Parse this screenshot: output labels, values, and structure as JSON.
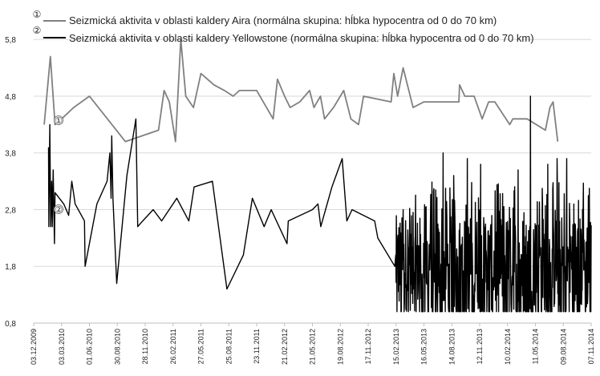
{
  "chart_data": {
    "type": "line",
    "title": "",
    "xlabel": "",
    "ylabel": "",
    "ylim": [
      0.8,
      6.1
    ],
    "yticks": [
      "0,8",
      "1,8",
      "2,8",
      "3,8",
      "4,8",
      "5,8"
    ],
    "ytick_values": [
      0.8,
      1.8,
      2.8,
      3.8,
      4.8,
      5.8
    ],
    "xlim": [
      "2009-12-03",
      "2014-11-07"
    ],
    "xticks": [
      "03.12.2009",
      "03.03.2010",
      "01.06.2010",
      "30.08.2010",
      "28.11.2010",
      "26.02.2011",
      "27.05.2011",
      "25.08.2011",
      "23.11.2011",
      "21.02.2012",
      "21.05.2012",
      "19.08.2012",
      "17.11.2012",
      "15.02.2013",
      "16.05.2013",
      "14.08.2013",
      "12.11.2013",
      "10.02.2014",
      "11.05.2014",
      "09.08.2014",
      "07.11.2014"
    ],
    "xtick_dates": [
      "2009-12-03",
      "2010-03-03",
      "2010-06-01",
      "2010-08-30",
      "2010-11-28",
      "2011-02-26",
      "2011-05-27",
      "2011-08-25",
      "2011-11-23",
      "2012-02-21",
      "2012-05-21",
      "2012-08-19",
      "2012-11-17",
      "2013-02-15",
      "2013-05-16",
      "2013-08-14",
      "2013-11-12",
      "2014-02-10",
      "2014-05-11",
      "2014-08-09",
      "2014-11-07"
    ],
    "grid": "horizontal",
    "legend": "top-left",
    "series": [
      {
        "name": "Seizmická aktivita v oblasti kaldery Aira (normálna skupina: hĺbka hypocentra od 0 do 70 km)",
        "marker": "①",
        "color": "#808080",
        "points": [
          [
            "2010-01-06",
            4.3
          ],
          [
            "2010-01-26",
            5.5
          ],
          [
            "2010-02-10",
            4.3
          ],
          [
            "2010-03-03",
            4.4
          ],
          [
            "2010-04-11",
            4.6
          ],
          [
            "2010-06-01",
            4.8
          ],
          [
            "2010-09-25",
            4.0
          ],
          [
            "2011-01-10",
            4.2
          ],
          [
            "2011-01-28",
            4.9
          ],
          [
            "2011-02-14",
            4.7
          ],
          [
            "2011-03-06",
            4.0
          ],
          [
            "2011-03-23",
            5.8
          ],
          [
            "2011-04-08",
            4.8
          ],
          [
            "2011-05-03",
            4.6
          ],
          [
            "2011-05-27",
            5.2
          ],
          [
            "2011-07-08",
            5.0
          ],
          [
            "2011-08-11",
            4.9
          ],
          [
            "2011-09-08",
            4.8
          ],
          [
            "2011-09-28",
            4.9
          ],
          [
            "2011-11-23",
            4.9
          ],
          [
            "2012-01-15",
            4.4
          ],
          [
            "2012-01-29",
            5.1
          ],
          [
            "2012-02-21",
            4.8
          ],
          [
            "2012-03-10",
            4.6
          ],
          [
            "2012-04-10",
            4.7
          ],
          [
            "2012-05-12",
            4.9
          ],
          [
            "2012-05-26",
            4.6
          ],
          [
            "2012-06-16",
            4.8
          ],
          [
            "2012-06-29",
            4.4
          ],
          [
            "2012-07-28",
            4.6
          ],
          [
            "2012-08-30",
            4.9
          ],
          [
            "2012-09-22",
            4.4
          ],
          [
            "2012-10-17",
            4.3
          ],
          [
            "2012-11-02",
            4.8
          ],
          [
            "2013-01-30",
            4.7
          ],
          [
            "2013-02-08",
            5.2
          ],
          [
            "2013-02-20",
            4.8
          ],
          [
            "2013-03-10",
            5.3
          ],
          [
            "2013-04-11",
            4.6
          ],
          [
            "2013-05-16",
            4.7
          ],
          [
            "2013-07-21",
            4.7
          ],
          [
            "2013-09-06",
            4.7
          ],
          [
            "2013-09-08",
            5.0
          ],
          [
            "2013-09-25",
            4.8
          ],
          [
            "2013-10-25",
            4.8
          ],
          [
            "2013-11-20",
            4.4
          ],
          [
            "2013-12-11",
            4.7
          ],
          [
            "2013-12-31",
            4.7
          ],
          [
            "2014-02-17",
            4.3
          ],
          [
            "2014-02-27",
            4.4
          ],
          [
            "2014-04-14",
            4.4
          ],
          [
            "2014-06-12",
            4.2
          ],
          [
            "2014-06-27",
            4.6
          ],
          [
            "2014-07-07",
            4.7
          ],
          [
            "2014-07-22",
            4.0
          ]
        ]
      },
      {
        "name": "Seizmická aktivita v oblasti kaldery Yellowstone (normálna skupina: hĺbka hypocentra od 0 do 70 km)",
        "marker": "②",
        "color": "#000000",
        "points": [
          [
            "2010-01-20",
            3.9
          ],
          [
            "2010-01-21",
            2.5
          ],
          [
            "2010-01-24",
            4.3
          ],
          [
            "2010-01-27",
            2.5
          ],
          [
            "2010-01-30",
            3.3
          ],
          [
            "2010-02-01",
            2.5
          ],
          [
            "2010-02-04",
            3.5
          ],
          [
            "2010-02-08",
            2.2
          ],
          [
            "2010-02-10",
            3.1
          ],
          [
            "2010-03-10",
            2.9
          ],
          [
            "2010-03-26",
            2.7
          ],
          [
            "2010-04-05",
            3.3
          ],
          [
            "2010-04-16",
            2.9
          ],
          [
            "2010-05-16",
            2.6
          ],
          [
            "2010-05-18",
            1.8
          ],
          [
            "2010-06-25",
            2.9
          ],
          [
            "2010-07-28",
            3.3
          ],
          [
            "2010-08-06",
            3.8
          ],
          [
            "2010-08-10",
            3.0
          ],
          [
            "2010-08-12",
            4.1
          ],
          [
            "2010-08-16",
            3.0
          ],
          [
            "2010-08-28",
            1.5
          ],
          [
            "2010-09-30",
            3.4
          ],
          [
            "2010-10-29",
            4.4
          ],
          [
            "2010-11-04",
            2.5
          ],
          [
            "2010-11-20",
            2.6
          ],
          [
            "2010-12-24",
            2.8
          ],
          [
            "2011-01-20",
            2.6
          ],
          [
            "2011-03-10",
            3.0
          ],
          [
            "2011-04-18",
            2.6
          ],
          [
            "2011-05-05",
            3.2
          ],
          [
            "2011-07-03",
            3.3
          ],
          [
            "2011-08-19",
            1.4
          ],
          [
            "2011-10-11",
            2.0
          ],
          [
            "2011-11-09",
            3.0
          ],
          [
            "2011-12-17",
            2.5
          ],
          [
            "2012-01-09",
            2.8
          ],
          [
            "2012-02-29",
            2.2
          ],
          [
            "2012-03-04",
            2.6
          ],
          [
            "2012-05-21",
            2.8
          ],
          [
            "2012-06-08",
            2.9
          ],
          [
            "2012-06-17",
            2.5
          ],
          [
            "2012-07-23",
            3.2
          ],
          [
            "2012-08-25",
            3.7
          ],
          [
            "2012-09-09",
            2.6
          ],
          [
            "2012-09-26",
            2.8
          ],
          [
            "2012-12-08",
            2.6
          ],
          [
            "2012-12-18",
            2.3
          ],
          [
            "2013-02-11",
            1.8
          ],
          [
            "2013-02-14",
            2.0
          ]
        ],
        "dense_segment": {
          "from": "2013-02-15",
          "to": "2014-11-07",
          "min": 1.0,
          "max": 4.8,
          "typical_range": [
            1.0,
            2.7
          ],
          "peaks": [
            [
              "2013-03-10",
              2.8
            ],
            [
              "2013-07-17",
              3.8
            ],
            [
              "2013-08-20",
              3.4
            ],
            [
              "2013-10-03",
              3.7
            ],
            [
              "2013-11-15",
              3.6
            ],
            [
              "2014-03-16",
              3.5
            ],
            [
              "2014-04-25",
              4.8
            ],
            [
              "2014-06-20",
              3.6
            ],
            [
              "2014-07-20",
              3.7
            ],
            [
              "2014-08-20",
              3.7
            ],
            [
              "2014-10-10",
              2.8
            ]
          ]
        }
      }
    ]
  }
}
